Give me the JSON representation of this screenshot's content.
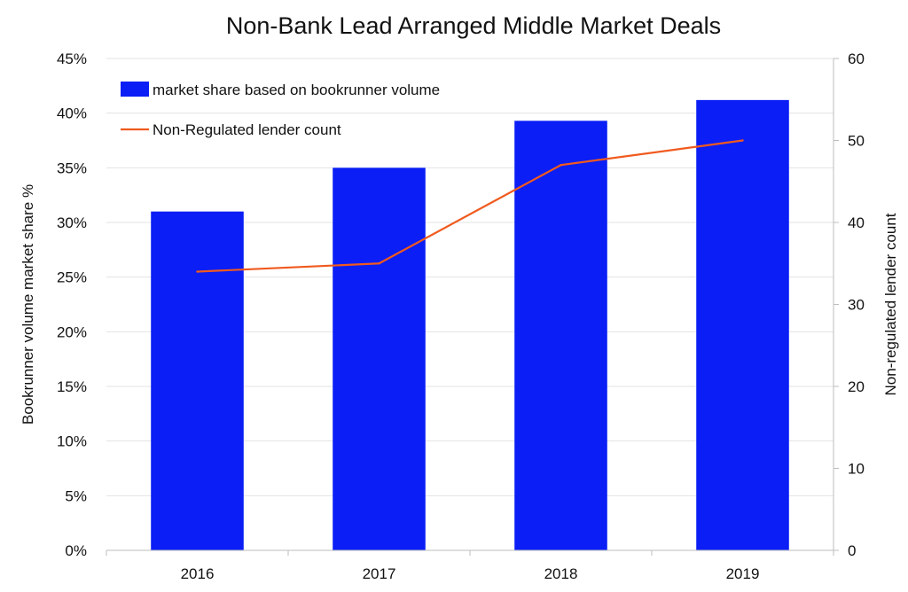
{
  "chart_data": {
    "type": "bar",
    "title": "Non-Bank Lead Arranged Middle Market Deals",
    "categories": [
      "2016",
      "2017",
      "2018",
      "2019"
    ],
    "series": [
      {
        "name": "market share based on bookrunner volume",
        "type": "bar",
        "axis": "left",
        "values": [
          31,
          35,
          39.3,
          41.2
        ]
      },
      {
        "name": "Non-Regulated lender count",
        "type": "line",
        "axis": "right",
        "values": [
          34,
          35,
          47,
          50
        ]
      }
    ],
    "ylabel": "Bookrunner volume market share %",
    "y2label": "Non-regulated lender count",
    "ylim": [
      0,
      45
    ],
    "y2lim": [
      0,
      60
    ],
    "yticks": [
      "0%",
      "5%",
      "10%",
      "15%",
      "20%",
      "25%",
      "30%",
      "35%",
      "40%",
      "45%"
    ],
    "y2ticks": [
      "0",
      "10",
      "20",
      "30",
      "40",
      "50",
      "60"
    ],
    "grid": true,
    "legend": "top-left",
    "colors": {
      "bar": "#0a1ef5",
      "line": "#f05a1e"
    }
  }
}
